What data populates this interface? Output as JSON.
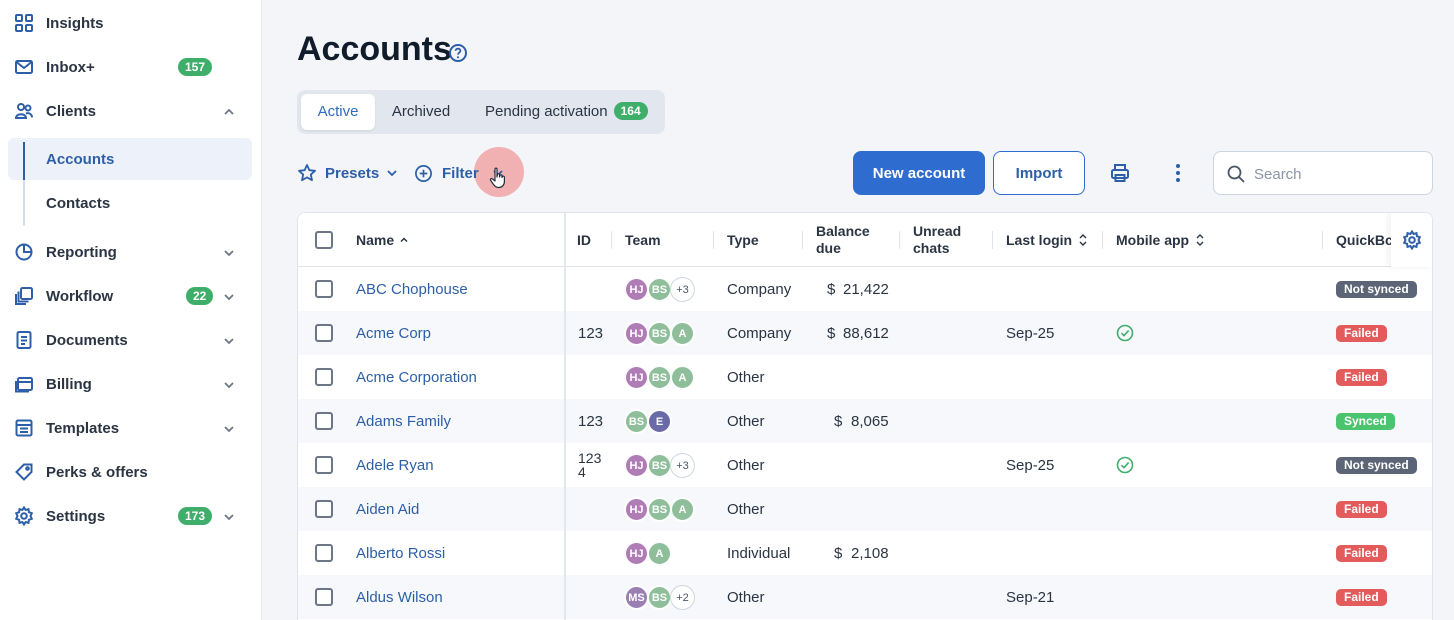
{
  "sidebar": {
    "items": [
      {
        "label": "Insights",
        "icon": "grid-icon"
      },
      {
        "label": "Inbox+",
        "icon": "mail-icon",
        "badge": "157"
      },
      {
        "label": "Clients",
        "icon": "clients-icon",
        "expanded": true
      },
      {
        "label": "Reporting",
        "icon": "pie-chart-icon"
      },
      {
        "label": "Workflow",
        "icon": "workflow-icon",
        "badge": "22"
      },
      {
        "label": "Documents",
        "icon": "document-icon"
      },
      {
        "label": "Billing",
        "icon": "billing-icon"
      },
      {
        "label": "Templates",
        "icon": "templates-icon"
      },
      {
        "label": "Perks & offers",
        "icon": "perks-icon"
      },
      {
        "label": "Settings",
        "icon": "gear-icon",
        "badge": "173"
      }
    ],
    "clients_sub": [
      {
        "label": "Accounts",
        "active": true
      },
      {
        "label": "Contacts",
        "active": false
      }
    ]
  },
  "header": {
    "title": "Accounts"
  },
  "tabs": [
    {
      "label": "Active",
      "active": true
    },
    {
      "label": "Archived",
      "active": false
    },
    {
      "label": "Pending activation",
      "badge": "164",
      "active": false
    }
  ],
  "toolbar": {
    "presets_label": "Presets",
    "filter_label": "Filter",
    "new_account_label": "New account",
    "import_label": "Import",
    "search_placeholder": "Search"
  },
  "table": {
    "columns": {
      "name": "Name",
      "id": "ID",
      "team": "Team",
      "type": "Type",
      "balance_line1": "Balance",
      "balance_line2": "due",
      "unread_line1": "Unread",
      "unread_line2": "chats",
      "last_login": "Last login",
      "mobile_app": "Mobile app",
      "quickbooks": "QuickBc"
    },
    "rows": [
      {
        "name": "ABC Chophouse",
        "id": "",
        "team": [
          "HJ",
          "BS",
          "+3"
        ],
        "type": "Company",
        "balance_symbol": "$",
        "balance": "21,422",
        "last_login": "",
        "mobile": false,
        "qb": "Not synced"
      },
      {
        "name": "Acme Corp",
        "id": "123",
        "team": [
          "HJ",
          "BS",
          "A"
        ],
        "type": "Company",
        "balance_symbol": "$",
        "balance": "88,612",
        "last_login": "Sep-25",
        "mobile": true,
        "qb": "Failed"
      },
      {
        "name": "Acme Corporation",
        "id": "",
        "team": [
          "HJ",
          "BS",
          "A"
        ],
        "type": "Other",
        "balance_symbol": "",
        "balance": "",
        "last_login": "",
        "mobile": false,
        "qb": "Failed"
      },
      {
        "name": "Adams Family",
        "id": "123",
        "team": [
          "BS",
          "E"
        ],
        "type": "Other",
        "balance_symbol": "$",
        "balance": "8,065",
        "last_login": "",
        "mobile": false,
        "qb": "Synced"
      },
      {
        "name": "Adele Ryan",
        "id": "123",
        "id2": "4",
        "team": [
          "HJ",
          "BS",
          "+3"
        ],
        "type": "Other",
        "balance_symbol": "",
        "balance": "",
        "last_login": "Sep-25",
        "mobile": true,
        "qb": "Not synced"
      },
      {
        "name": "Aiden Aid",
        "id": "",
        "team": [
          "HJ",
          "BS",
          "A"
        ],
        "type": "Other",
        "balance_symbol": "",
        "balance": "",
        "last_login": "",
        "mobile": false,
        "qb": "Failed"
      },
      {
        "name": "Alberto Rossi",
        "id": "",
        "team": [
          "HJ",
          "A"
        ],
        "type": "Individual",
        "balance_symbol": "$",
        "balance": "2,108",
        "last_login": "",
        "mobile": false,
        "qb": "Failed"
      },
      {
        "name": "Aldus Wilson",
        "id": "",
        "team": [
          "MS",
          "BS",
          "+2"
        ],
        "type": "Other",
        "balance_symbol": "",
        "balance": "",
        "last_login": "Sep-21",
        "mobile": false,
        "qb": "Failed"
      }
    ]
  },
  "colors": {
    "accent": "#2f6ccf",
    "badge_green": "#3fae6a",
    "status_failed": "#e35b5b",
    "status_synced": "#4cc46f",
    "status_not_synced": "#5b6576",
    "avatar_hj": "#b07cb5",
    "avatar_bs": "#8fbf9a",
    "avatar_a": "#8fbf9a",
    "avatar_e": "#6a6aa8",
    "avatar_ms": "#9a7fb2"
  }
}
